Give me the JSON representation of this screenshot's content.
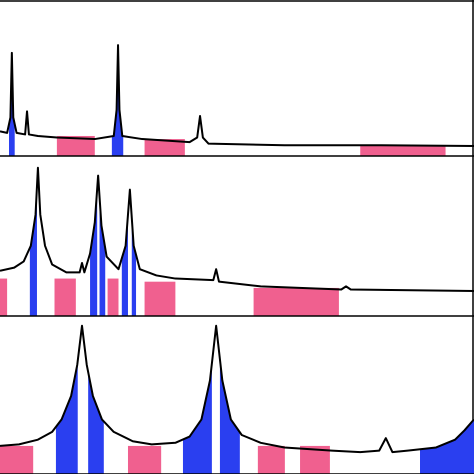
{
  "chart_data": [
    {
      "type": "line",
      "xlim": [
        0,
        100
      ],
      "ylim": [
        0,
        100
      ],
      "line_color": "#000000",
      "x": [
        0,
        1.5,
        2.2,
        2.5,
        2.8,
        3.5,
        5.3,
        5.7,
        6.1,
        8,
        12,
        20,
        24,
        24.6,
        24.9,
        25.2,
        25.8,
        30,
        40,
        41.6,
        42.2,
        42.8,
        44,
        60,
        80,
        100
      ],
      "y": [
        16,
        15,
        25,
        67,
        25,
        15,
        14,
        29,
        14,
        13,
        12,
        11,
        13,
        30,
        72,
        30,
        13,
        11,
        9,
        12,
        26,
        12,
        8,
        7,
        7,
        6.5
      ],
      "fill_regions": {
        "color": "#2a3ff0",
        "spans": [
          {
            "x0": 1.9,
            "x1": 3.1
          },
          {
            "x0": 23.6,
            "x1": 26
          }
        ]
      },
      "bars": {
        "color": "#f0608f",
        "spans": [
          {
            "x0": 12,
            "x1": 20,
            "top": 13
          },
          {
            "x0": 30.5,
            "x1": 39,
            "top": 11
          },
          {
            "x0": 76,
            "x1": 94,
            "top": 7
          }
        ]
      }
    },
    {
      "type": "line",
      "xlim": [
        0,
        100
      ],
      "ylim": [
        0,
        100
      ],
      "line_color": "#000000",
      "x": [
        0,
        3,
        5,
        6.5,
        7.5,
        8,
        8.5,
        9.5,
        11,
        14,
        16.8,
        17.3,
        17.8,
        19,
        20,
        20.7,
        21.4,
        22.5,
        25,
        26.5,
        27.4,
        28.2,
        29.5,
        33,
        37,
        45,
        45.6,
        46.2,
        55,
        72,
        73,
        74,
        100
      ],
      "y": [
        29,
        31,
        35,
        45,
        65,
        95,
        65,
        45,
        33,
        28,
        28,
        34,
        28,
        40,
        60,
        90,
        58,
        38,
        30,
        45,
        81,
        45,
        30,
        26,
        24,
        23,
        30,
        22,
        19,
        17,
        19,
        17,
        16
      ],
      "fill_regions": {
        "color": "#2a3ff0",
        "spans": [
          {
            "x0": 6.3,
            "x1": 7.8
          },
          {
            "x0": 19,
            "x1": 20.5
          },
          {
            "x0": 21,
            "x1": 22.2
          },
          {
            "x0": 25.7,
            "x1": 27
          },
          {
            "x0": 27.8,
            "x1": 28.7
          }
        ]
      },
      "bars": {
        "color": "#f0608f",
        "spans": [
          {
            "x0": 0,
            "x1": 1.5,
            "top": 24
          },
          {
            "x0": 11.5,
            "x1": 16,
            "top": 24
          },
          {
            "x0": 22.7,
            "x1": 25,
            "top": 24
          },
          {
            "x0": 30.5,
            "x1": 37,
            "top": 22
          },
          {
            "x0": 53.5,
            "x1": 71.5,
            "top": 18
          }
        ]
      }
    },
    {
      "type": "line",
      "xlim": [
        0,
        100
      ],
      "ylim": [
        0,
        100
      ],
      "line_color": "#000000",
      "x": [
        0,
        4,
        8,
        11,
        13,
        15,
        16.3,
        17.3,
        18.3,
        19.6,
        21.5,
        24,
        28,
        32,
        37,
        40,
        42.5,
        44.3,
        45.6,
        46.9,
        48.7,
        51,
        55,
        60,
        70,
        76,
        80,
        81.4,
        82.8,
        86,
        92,
        96,
        98,
        100
      ],
      "y": [
        18,
        19,
        22,
        27,
        35,
        50,
        70,
        95,
        70,
        50,
        35,
        27,
        21,
        19,
        20,
        24,
        35,
        60,
        95,
        60,
        35,
        25,
        20,
        17,
        15,
        14,
        15,
        23,
        14,
        15,
        17,
        22,
        28,
        35
      ],
      "fill_regions": {
        "color": "#2a3ff0",
        "spans": [
          {
            "x0": 11.8,
            "x1": 16.4
          },
          {
            "x0": 18.6,
            "x1": 21.9
          },
          {
            "x0": 38.6,
            "x1": 44.7
          },
          {
            "x0": 46.4,
            "x1": 50.6
          },
          {
            "x0": 88.6,
            "x1": 100
          }
        ]
      },
      "bars": {
        "color": "#f0608f",
        "spans": [
          {
            "x0": 0,
            "x1": 7,
            "top": 18
          },
          {
            "x0": 27,
            "x1": 34,
            "top": 18
          },
          {
            "x0": 54.4,
            "x1": 60.1,
            "top": 18
          },
          {
            "x0": 63.3,
            "x1": 69.6,
            "top": 18
          }
        ]
      }
    }
  ]
}
